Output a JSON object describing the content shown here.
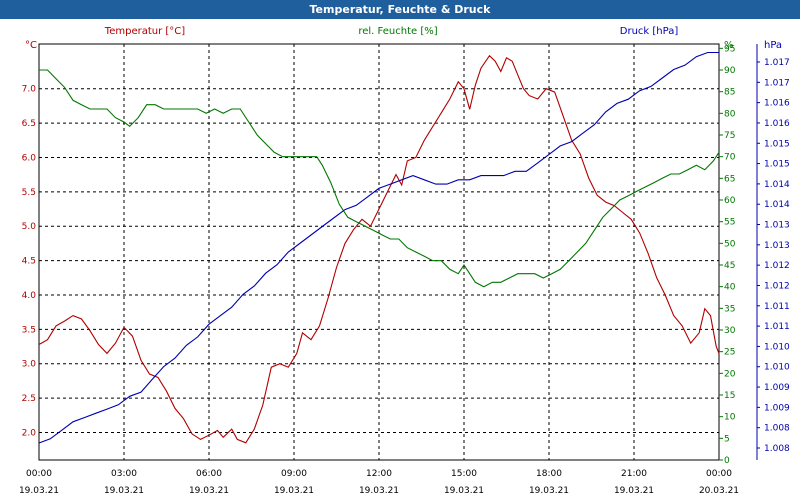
{
  "window": {
    "title": "Temperatur, Feuchte & Druck"
  },
  "colors": {
    "temperature": "#b00000",
    "humidity": "#007700",
    "pressure": "#0000b0",
    "titlebar": "#1f5f9e",
    "grid": "#000000"
  },
  "chart_data": {
    "type": "line",
    "title": "Temperatur, Feuchte & Druck",
    "x_ticks": [
      {
        "time": "00:00",
        "date": "19.03.21"
      },
      {
        "time": "03:00",
        "date": "19.03.21"
      },
      {
        "time": "06:00",
        "date": "19.03.21"
      },
      {
        "time": "09:00",
        "date": "19.03.21"
      },
      {
        "time": "12:00",
        "date": "19.03.21"
      },
      {
        "time": "15:00",
        "date": "19.03.21"
      },
      {
        "time": "18:00",
        "date": "19.03.21"
      },
      {
        "time": "21:00",
        "date": "19.03.21"
      },
      {
        "time": "00:00",
        "date": "20.03.21"
      }
    ],
    "xlim": [
      0,
      24
    ],
    "axes": {
      "temperature": {
        "label": "Temperatur [°C]",
        "unit": "°C",
        "ylim": [
          1.6,
          7.65
        ],
        "ticks": [
          "2.0",
          "2.5",
          "3.0",
          "3.5",
          "4.0",
          "4.5",
          "5.0",
          "5.5",
          "6.0",
          "6.5",
          "7.0"
        ]
      },
      "humidity": {
        "label": "rel. Feuchte [%]",
        "unit": "%",
        "ylim": [
          0,
          96
        ],
        "ticks": [
          "0",
          "5",
          "10",
          "15",
          "20",
          "25",
          "30",
          "35",
          "40",
          "45",
          "50",
          "55",
          "60",
          "65",
          "70",
          "75",
          "80",
          "85",
          "90",
          "95"
        ]
      },
      "pressure": {
        "label": "Druck [hPa]",
        "unit": "hPa",
        "ylim": [
          1.0075,
          1.0173
        ],
        "ticks": [
          "1.008",
          "1.008",
          "1.009",
          "1.009",
          "1.010",
          "1.010",
          "1.011",
          "1.011",
          "1.012",
          "1.012",
          "1.013",
          "1.013",
          "1.014",
          "1.014",
          "1.015",
          "1.015",
          "1.016",
          "1.016",
          "1.017",
          "1.017"
        ]
      }
    },
    "series": [
      {
        "name": "Temperatur [°C]",
        "axis": "temperature",
        "points": [
          [
            0.0,
            3.28
          ],
          [
            0.3,
            3.35
          ],
          [
            0.6,
            3.55
          ],
          [
            0.9,
            3.62
          ],
          [
            1.2,
            3.7
          ],
          [
            1.5,
            3.65
          ],
          [
            1.8,
            3.48
          ],
          [
            2.1,
            3.28
          ],
          [
            2.4,
            3.15
          ],
          [
            2.7,
            3.3
          ],
          [
            3.0,
            3.53
          ],
          [
            3.3,
            3.4
          ],
          [
            3.6,
            3.05
          ],
          [
            3.9,
            2.85
          ],
          [
            4.2,
            2.8
          ],
          [
            4.5,
            2.6
          ],
          [
            4.8,
            2.35
          ],
          [
            5.1,
            2.2
          ],
          [
            5.4,
            1.98
          ],
          [
            5.7,
            1.9
          ],
          [
            6.0,
            1.96
          ],
          [
            6.3,
            2.03
          ],
          [
            6.5,
            1.93
          ],
          [
            6.8,
            2.05
          ],
          [
            7.0,
            1.9
          ],
          [
            7.3,
            1.85
          ],
          [
            7.6,
            2.05
          ],
          [
            7.9,
            2.4
          ],
          [
            8.2,
            2.95
          ],
          [
            8.5,
            3.0
          ],
          [
            8.8,
            2.95
          ],
          [
            9.1,
            3.15
          ],
          [
            9.3,
            3.45
          ],
          [
            9.6,
            3.35
          ],
          [
            9.9,
            3.55
          ],
          [
            10.2,
            3.95
          ],
          [
            10.5,
            4.4
          ],
          [
            10.8,
            4.75
          ],
          [
            11.1,
            4.95
          ],
          [
            11.4,
            5.1
          ],
          [
            11.7,
            5.0
          ],
          [
            12.0,
            5.25
          ],
          [
            12.3,
            5.5
          ],
          [
            12.6,
            5.75
          ],
          [
            12.8,
            5.6
          ],
          [
            13.0,
            5.95
          ],
          [
            13.3,
            6.0
          ],
          [
            13.6,
            6.25
          ],
          [
            13.9,
            6.45
          ],
          [
            14.2,
            6.65
          ],
          [
            14.5,
            6.85
          ],
          [
            14.8,
            7.1
          ],
          [
            15.0,
            7.0
          ],
          [
            15.2,
            6.7
          ],
          [
            15.4,
            7.05
          ],
          [
            15.6,
            7.3
          ],
          [
            15.9,
            7.48
          ],
          [
            16.1,
            7.4
          ],
          [
            16.3,
            7.25
          ],
          [
            16.5,
            7.45
          ],
          [
            16.7,
            7.4
          ],
          [
            16.9,
            7.2
          ],
          [
            17.1,
            7.0
          ],
          [
            17.3,
            6.9
          ],
          [
            17.6,
            6.85
          ],
          [
            17.9,
            7.0
          ],
          [
            18.2,
            6.95
          ],
          [
            18.5,
            6.6
          ],
          [
            18.8,
            6.25
          ],
          [
            19.1,
            6.05
          ],
          [
            19.4,
            5.7
          ],
          [
            19.7,
            5.45
          ],
          [
            20.0,
            5.35
          ],
          [
            20.3,
            5.3
          ],
          [
            20.6,
            5.2
          ],
          [
            20.9,
            5.1
          ],
          [
            21.2,
            4.9
          ],
          [
            21.5,
            4.6
          ],
          [
            21.8,
            4.25
          ],
          [
            22.1,
            4.0
          ],
          [
            22.4,
            3.7
          ],
          [
            22.7,
            3.55
          ],
          [
            23.0,
            3.3
          ],
          [
            23.3,
            3.45
          ],
          [
            23.5,
            3.8
          ],
          [
            23.7,
            3.7
          ],
          [
            23.9,
            3.25
          ],
          [
            24.0,
            3.15
          ]
        ]
      },
      {
        "name": "rel. Feuchte [%]",
        "axis": "humidity",
        "points": [
          [
            0.0,
            90
          ],
          [
            0.3,
            90
          ],
          [
            0.6,
            88
          ],
          [
            0.9,
            86
          ],
          [
            1.2,
            83
          ],
          [
            1.5,
            82
          ],
          [
            1.8,
            81
          ],
          [
            2.1,
            81
          ],
          [
            2.4,
            81
          ],
          [
            2.7,
            79
          ],
          [
            3.0,
            78
          ],
          [
            3.2,
            77
          ],
          [
            3.5,
            79
          ],
          [
            3.8,
            82
          ],
          [
            4.1,
            82
          ],
          [
            4.4,
            81
          ],
          [
            4.7,
            81
          ],
          [
            5.0,
            81
          ],
          [
            5.3,
            81
          ],
          [
            5.6,
            81
          ],
          [
            5.9,
            80
          ],
          [
            6.2,
            81
          ],
          [
            6.5,
            80
          ],
          [
            6.8,
            81
          ],
          [
            7.1,
            81
          ],
          [
            7.4,
            78
          ],
          [
            7.7,
            75
          ],
          [
            8.0,
            73
          ],
          [
            8.3,
            71
          ],
          [
            8.6,
            70
          ],
          [
            8.9,
            70
          ],
          [
            9.2,
            70
          ],
          [
            9.5,
            70
          ],
          [
            9.8,
            70
          ],
          [
            10.0,
            68
          ],
          [
            10.3,
            64
          ],
          [
            10.6,
            59
          ],
          [
            10.9,
            56
          ],
          [
            11.2,
            55
          ],
          [
            11.5,
            54
          ],
          [
            11.8,
            53
          ],
          [
            12.1,
            52
          ],
          [
            12.4,
            51
          ],
          [
            12.7,
            51
          ],
          [
            13.0,
            49
          ],
          [
            13.3,
            48
          ],
          [
            13.6,
            47
          ],
          [
            13.9,
            46
          ],
          [
            14.2,
            46
          ],
          [
            14.5,
            44
          ],
          [
            14.8,
            43
          ],
          [
            15.0,
            45
          ],
          [
            15.2,
            43
          ],
          [
            15.4,
            41
          ],
          [
            15.7,
            40
          ],
          [
            16.0,
            41
          ],
          [
            16.3,
            41
          ],
          [
            16.6,
            42
          ],
          [
            16.9,
            43
          ],
          [
            17.2,
            43
          ],
          [
            17.5,
            43
          ],
          [
            17.8,
            42
          ],
          [
            18.1,
            43
          ],
          [
            18.4,
            44
          ],
          [
            18.7,
            46
          ],
          [
            19.0,
            48
          ],
          [
            19.3,
            50
          ],
          [
            19.6,
            53
          ],
          [
            19.9,
            56
          ],
          [
            20.2,
            58
          ],
          [
            20.5,
            60
          ],
          [
            20.8,
            61
          ],
          [
            21.1,
            62
          ],
          [
            21.4,
            63
          ],
          [
            21.7,
            64
          ],
          [
            22.0,
            65
          ],
          [
            22.3,
            66
          ],
          [
            22.6,
            66
          ],
          [
            22.9,
            67
          ],
          [
            23.2,
            68
          ],
          [
            23.5,
            67
          ],
          [
            23.8,
            69
          ],
          [
            24.0,
            71
          ]
        ]
      },
      {
        "name": "Druck [hPa]",
        "axis": "pressure",
        "points": [
          [
            0.0,
            1.0079
          ],
          [
            0.4,
            1.008
          ],
          [
            0.8,
            1.0082
          ],
          [
            1.2,
            1.0084
          ],
          [
            1.6,
            1.0085
          ],
          [
            2.0,
            1.0086
          ],
          [
            2.4,
            1.0087
          ],
          [
            2.8,
            1.0088
          ],
          [
            3.2,
            1.009
          ],
          [
            3.6,
            1.0091
          ],
          [
            4.0,
            1.0094
          ],
          [
            4.4,
            1.0097
          ],
          [
            4.8,
            1.0099
          ],
          [
            5.2,
            1.0102
          ],
          [
            5.6,
            1.0104
          ],
          [
            6.0,
            1.0107
          ],
          [
            6.4,
            1.0109
          ],
          [
            6.8,
            1.0111
          ],
          [
            7.2,
            1.0114
          ],
          [
            7.6,
            1.0116
          ],
          [
            8.0,
            1.0119
          ],
          [
            8.4,
            1.0121
          ],
          [
            8.8,
            1.0124
          ],
          [
            9.2,
            1.0126
          ],
          [
            9.6,
            1.0128
          ],
          [
            10.0,
            1.013
          ],
          [
            10.4,
            1.0132
          ],
          [
            10.8,
            1.0134
          ],
          [
            11.2,
            1.0135
          ],
          [
            11.6,
            1.0137
          ],
          [
            12.0,
            1.0139
          ],
          [
            12.4,
            1.014
          ],
          [
            12.8,
            1.0141
          ],
          [
            13.2,
            1.0142
          ],
          [
            13.6,
            1.0141
          ],
          [
            14.0,
            1.014
          ],
          [
            14.4,
            1.014
          ],
          [
            14.8,
            1.0141
          ],
          [
            15.2,
            1.0141
          ],
          [
            15.6,
            1.0142
          ],
          [
            16.0,
            1.0142
          ],
          [
            16.4,
            1.0142
          ],
          [
            16.8,
            1.0143
          ],
          [
            17.2,
            1.0143
          ],
          [
            17.6,
            1.0145
          ],
          [
            18.0,
            1.0147
          ],
          [
            18.4,
            1.0149
          ],
          [
            18.8,
            1.015
          ],
          [
            19.2,
            1.0152
          ],
          [
            19.6,
            1.0154
          ],
          [
            20.0,
            1.0157
          ],
          [
            20.4,
            1.0159
          ],
          [
            20.8,
            1.016
          ],
          [
            21.2,
            1.0162
          ],
          [
            21.6,
            1.0163
          ],
          [
            22.0,
            1.0165
          ],
          [
            22.4,
            1.0167
          ],
          [
            22.8,
            1.0168
          ],
          [
            23.2,
            1.017
          ],
          [
            23.6,
            1.0171
          ],
          [
            24.0,
            1.0171
          ]
        ]
      }
    ]
  }
}
